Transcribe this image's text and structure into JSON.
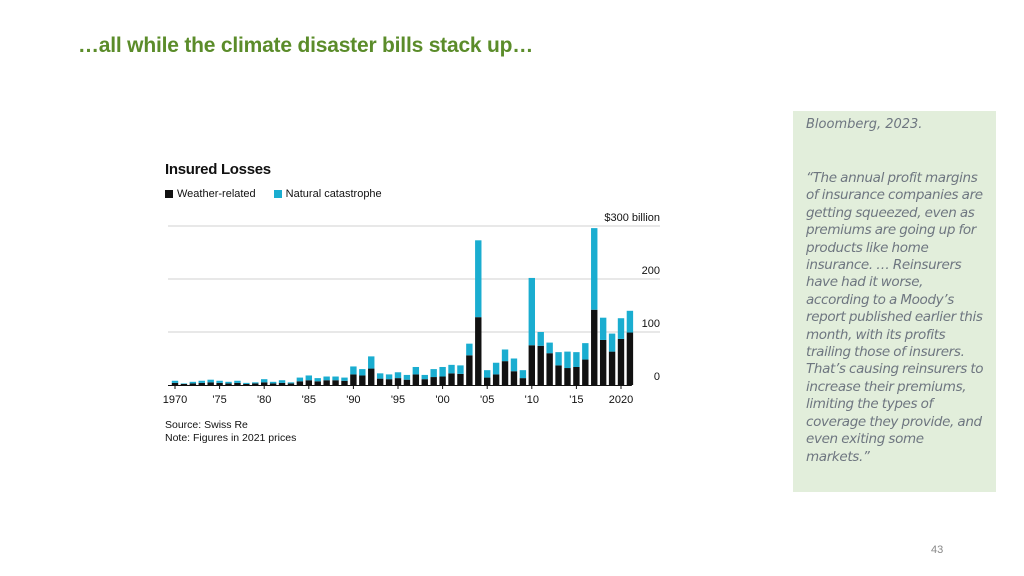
{
  "slide": {
    "title": "…all while the climate disaster bills stack up…",
    "page_number": "43"
  },
  "quote": {
    "source": "Bloomberg, 2023.",
    "text": "“The annual profit margins of insurance companies are getting squeezed, even as premiums are going up for products like home insurance. … Reinsurers have had it worse, according to a Moody’s report published earlier this month, with its profits trailing those of insurers. That’s causing reinsurers to increase their premiums, limiting the types of coverage they provide, and even exiting some markets.”"
  },
  "colors": {
    "title_green": "#5b8c2a",
    "weather_related": "#111111",
    "natural_catastrophe": "#1aadd0",
    "quote_background": "#e2eedb"
  },
  "chart_data": {
    "type": "bar",
    "stacked": true,
    "title": "Insured Losses",
    "legend_position": "top-left",
    "grid": true,
    "years": [
      1970,
      1971,
      1972,
      1973,
      1974,
      1975,
      1976,
      1977,
      1978,
      1979,
      1980,
      1981,
      1982,
      1983,
      1984,
      1985,
      1986,
      1987,
      1988,
      1989,
      1990,
      1991,
      1992,
      1993,
      1994,
      1995,
      1996,
      1997,
      1998,
      1999,
      2000,
      2001,
      2002,
      2003,
      2004,
      2005,
      2006,
      2007,
      2008,
      2009,
      2010,
      2011,
      2012,
      2013,
      2014,
      2015,
      2016,
      2017,
      2018,
      2019,
      2020,
      2021
    ],
    "series": [
      {
        "name": "Weather-related",
        "values": [
          4,
          2,
          3,
          4,
          5,
          4,
          3,
          4,
          2,
          3,
          5,
          3,
          4,
          3,
          7,
          9,
          7,
          9,
          9,
          8,
          20,
          18,
          31,
          12,
          11,
          13,
          10,
          20,
          11,
          15,
          16,
          22,
          21,
          56,
          128,
          14,
          20,
          45,
          26,
          13,
          75,
          74,
          60,
          37,
          32,
          34,
          48,
          142,
          85,
          63,
          87,
          99
        ]
      },
      {
        "name": "Natural catastrophe",
        "values": [
          4,
          1,
          3,
          4,
          5,
          4,
          3,
          4,
          2,
          2,
          6,
          3,
          5,
          2,
          7,
          9,
          6,
          7,
          7,
          6,
          15,
          12,
          23,
          10,
          9,
          11,
          9,
          14,
          8,
          15,
          18,
          16,
          16,
          22,
          145,
          14,
          22,
          22,
          24,
          15,
          127,
          26,
          20,
          25,
          31,
          28,
          31,
          154,
          42,
          34,
          39,
          41
        ]
      }
    ],
    "x_ticks": [
      "1970",
      "'75",
      "'80",
      "'85",
      "'90",
      "'95",
      "'00",
      "'05",
      "'10",
      "'15",
      "2020"
    ],
    "y_ticks": [
      {
        "value": 0,
        "label": "0"
      },
      {
        "value": 100,
        "label": "100"
      },
      {
        "value": 200,
        "label": "200"
      },
      {
        "value": 300,
        "label": "$300 billion"
      }
    ],
    "ylim": [
      0,
      300
    ],
    "source": "Source: Swiss Re",
    "note": "Note: Figures in 2021 prices"
  }
}
